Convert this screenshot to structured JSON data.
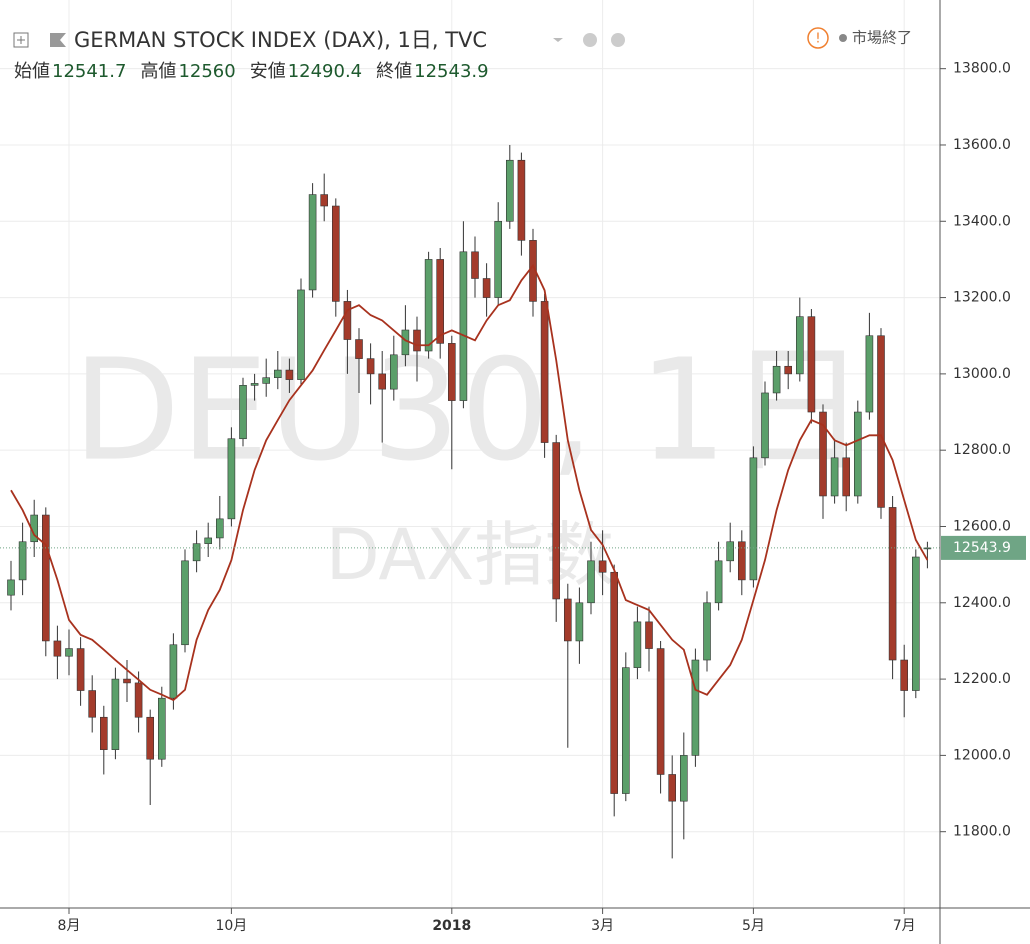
{
  "chart_data": {
    "type": "candlestick",
    "title": "GERMAN STOCK INDEX (DAX), 1日, TVC",
    "ohlc_labels": [
      "始値",
      "高値",
      "安値",
      "終値"
    ],
    "status": "市場終了",
    "watermark": "DEU30, 1日",
    "watermark_sub": "DAX指数",
    "categories": [
      null,
      null,
      null,
      null,
      null,
      "8月",
      null,
      null,
      null,
      null,
      null,
      null,
      null,
      null,
      null,
      null,
      null,
      null,
      null,
      "10月",
      null,
      null,
      null,
      null,
      null,
      null,
      null,
      null,
      null,
      null,
      null,
      null,
      null,
      null,
      null,
      null,
      null,
      null,
      "2018",
      null,
      null,
      null,
      null,
      null,
      null,
      null,
      null,
      null,
      null,
      null,
      null,
      "3月",
      null,
      null,
      null,
      null,
      null,
      null,
      null,
      null,
      null,
      null,
      null,
      null,
      "5月",
      null,
      null,
      null,
      null,
      null,
      null,
      null,
      null,
      null,
      null,
      null,
      null,
      "7月",
      null,
      null
    ],
    "open": [
      12420,
      12460,
      12560,
      12630,
      12300,
      12260,
      12280,
      12170,
      12100,
      12015,
      12200,
      12190,
      12100,
      11990,
      12150,
      12290,
      12510,
      12555,
      12570,
      12620,
      12830,
      12970,
      12975,
      12990,
      13010,
      12985,
      13220,
      13470,
      13440,
      13190,
      13090,
      13040,
      13000,
      12960,
      13050,
      13115,
      13060,
      13300,
      13080,
      12930,
      13320,
      13250,
      13200,
      13400,
      13560,
      13350,
      13190,
      12820,
      12410,
      12300,
      12400,
      12510,
      12480,
      11900,
      12230,
      12350,
      12280,
      11950,
      11880,
      12000,
      12250,
      12400,
      12510,
      12560,
      12460,
      12780,
      12950,
      13020,
      13000,
      13150,
      12900,
      12680,
      12780,
      12680,
      12900,
      13100,
      12650,
      12250,
      12170,
      12541.7
    ],
    "high": [
      12510,
      12610,
      12670,
      12650,
      12340,
      12330,
      12310,
      12210,
      12130,
      12230,
      12250,
      12220,
      12120,
      12180,
      12320,
      12540,
      12590,
      12610,
      12680,
      12860,
      12990,
      13000,
      13040,
      13060,
      13040,
      13250,
      13500,
      13525,
      13460,
      13220,
      13120,
      13080,
      13060,
      13100,
      13180,
      13150,
      13320,
      13330,
      13100,
      13400,
      13360,
      13290,
      13450,
      13600,
      13580,
      13380,
      13210,
      12840,
      12450,
      12440,
      12560,
      12590,
      12500,
      12270,
      12390,
      12390,
      12300,
      12000,
      12060,
      12280,
      12430,
      12560,
      12610,
      12590,
      12810,
      12980,
      13060,
      13060,
      13200,
      13170,
      12920,
      12830,
      12820,
      12930,
      13160,
      13120,
      12680,
      12290,
      12540,
      12560.0
    ],
    "low": [
      12380,
      12420,
      12520,
      12260,
      12200,
      12210,
      12130,
      12060,
      11950,
      11990,
      12140,
      12060,
      11870,
      11970,
      12120,
      12270,
      12480,
      12520,
      12540,
      12600,
      12810,
      12930,
      12940,
      12960,
      12950,
      12970,
      13200,
      13400,
      13150,
      13000,
      12950,
      12920,
      12820,
      12930,
      13020,
      12980,
      13040,
      13040,
      12750,
      12910,
      13200,
      13150,
      13180,
      13380,
      13310,
      13150,
      12780,
      12350,
      12020,
      12240,
      12370,
      12420,
      11840,
      11880,
      12200,
      12220,
      11900,
      11730,
      11780,
      11970,
      12220,
      12380,
      12480,
      12420,
      12440,
      12760,
      12930,
      12960,
      12980,
      12870,
      12620,
      12660,
      12640,
      12660,
      12880,
      12620,
      12200,
      12100,
      12150,
      12490.4
    ],
    "close": [
      12460,
      12560,
      12630,
      12300,
      12260,
      12280,
      12170,
      12100,
      12015,
      12200,
      12190,
      12100,
      11990,
      12150,
      12290,
      12510,
      12555,
      12570,
      12620,
      12830,
      12970,
      12975,
      12990,
      13010,
      12985,
      13220,
      13470,
      13440,
      13190,
      13090,
      13040,
      13000,
      12960,
      13050,
      13115,
      13060,
      13300,
      13080,
      12930,
      13320,
      13250,
      13200,
      13400,
      13560,
      13350,
      13190,
      12820,
      12410,
      12300,
      12400,
      12510,
      12480,
      11900,
      12230,
      12350,
      12280,
      11950,
      11880,
      12000,
      12250,
      12400,
      12510,
      12560,
      12460,
      12780,
      12950,
      13020,
      13000,
      13150,
      12900,
      12680,
      12780,
      12680,
      12900,
      13100,
      12650,
      12250,
      12170,
      12520,
      12543.9
    ],
    "ma": {
      "color": "#a8321e",
      "values": [
        12695,
        12643,
        12578,
        12552,
        12460,
        12355,
        12316,
        12303,
        12277,
        12250,
        12224,
        12198,
        12172,
        12159,
        12145,
        12172,
        12303,
        12381,
        12434,
        12512,
        12643,
        12748,
        12826,
        12879,
        12931,
        12970,
        13009,
        13062,
        13114,
        13167,
        13180,
        13154,
        13140,
        13114,
        13088,
        13075,
        13075,
        13101,
        13114,
        13101,
        13088,
        13140,
        13180,
        13193,
        13245,
        13284,
        13219,
        13036,
        12826,
        12695,
        12591,
        12552,
        12486,
        12407,
        12394,
        12381,
        12342,
        12303,
        12277,
        12172,
        12159,
        12198,
        12237,
        12303,
        12407,
        12512,
        12643,
        12748,
        12826,
        12879,
        12866,
        12826,
        12813,
        12826,
        12839,
        12839,
        12774,
        12669,
        12565,
        12512
      ]
    },
    "up_color": "#5b9f6a",
    "down_color": "#a33b2b",
    "tag_color": "#6fa585",
    "ylim": [
      11600,
      13980
    ],
    "yticks": [
      {
        "value": 11800,
        "label": "11800.0"
      },
      {
        "value": 12000,
        "label": "12000.0"
      },
      {
        "value": 12200,
        "label": "12200.0"
      },
      {
        "value": 12400,
        "label": "12400.0"
      },
      {
        "value": 12600,
        "label": "12600.0"
      },
      {
        "value": 12800,
        "label": "12800.0"
      },
      {
        "value": 13000,
        "label": "13000.0"
      },
      {
        "value": 13200,
        "label": "13200.0"
      },
      {
        "value": 13400,
        "label": "13400.0"
      },
      {
        "value": 13600,
        "label": "13600.0"
      },
      {
        "value": 13800,
        "label": "13800.0"
      }
    ],
    "grid": true
  }
}
